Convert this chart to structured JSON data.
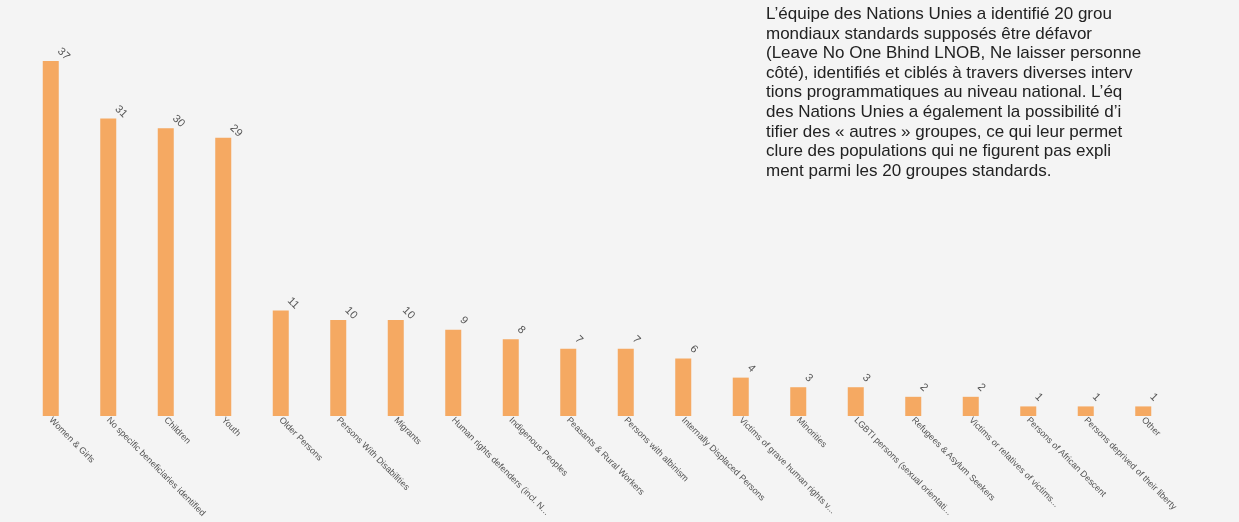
{
  "chart_data": {
    "type": "bar",
    "categories": [
      "Women & Girls",
      "No specific beneficiaries identified",
      "Children",
      "Youth",
      "Older Persons",
      "Persons With Disabilities",
      "Migrants",
      "Human rights defenders (incl. N...",
      "Indigenous Peoples",
      "Peasants & Rural Workers",
      "Persons with albinism",
      "Internally Displaced Persons",
      "Victims of grave human rights v...",
      "Minorities",
      "LGBTI persons (sexual orientati...",
      "Refugees & Asylum Seekers",
      "Victims or relatives of victims...",
      "Persons of African Descent",
      "Persons deprived of their liberty",
      "Other"
    ],
    "values": [
      37,
      31,
      30,
      29,
      11,
      10,
      10,
      9,
      8,
      7,
      7,
      6,
      4,
      3,
      3,
      2,
      2,
      1,
      1,
      1
    ],
    "color": "#f5a962",
    "data_labels": true,
    "tick_labels": "x",
    "grid": false,
    "annotations": [
      "L’équipe des Nations Unies a identifié 20 grou",
      "mondiaux standards supposés être défavor",
      "(Leave No One Bhind LNOB, Ne laisser personne",
      "côté), identifiés et ciblés à travers diverses interv",
      "tions programmatiques au niveau national. L’éq",
      "des Nations Unies a également la possibilité d’i",
      "tifier des « autres » groupes, ce qui leur permet",
      "clure des populations qui ne figurent pas expli",
      "ment parmi les 20 groupes standards."
    ]
  }
}
